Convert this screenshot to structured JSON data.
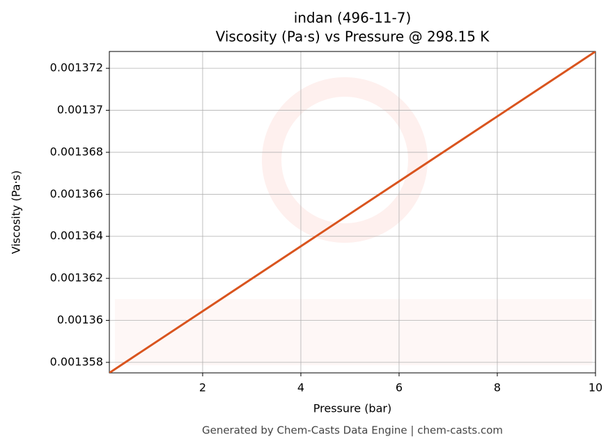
{
  "chart_data": {
    "type": "line",
    "title": "indan (496-11-7)",
    "subtitle": "Viscosity (Pa·s) vs Pressure @ 298.15 K",
    "x_label": "Pressure (bar)",
    "y_label": "Viscosity (Pa·s)",
    "footer": "Generated by Chem-Casts Data Engine | chem-casts.com",
    "x": [
      0.1,
      10
    ],
    "series": [
      {
        "name": "indan",
        "color": "#d9541e",
        "values": [
          0.0013575,
          0.0013728
        ]
      }
    ],
    "xlim": [
      0.1,
      10
    ],
    "xticks": [
      2,
      4,
      6,
      8,
      10
    ],
    "ylim": [
      0.0013575,
      0.0013728
    ],
    "yticks": [
      0.001358,
      0.00136,
      0.001362,
      0.001364,
      0.001366,
      0.001368,
      0.00137,
      0.001372
    ],
    "grid": true
  }
}
